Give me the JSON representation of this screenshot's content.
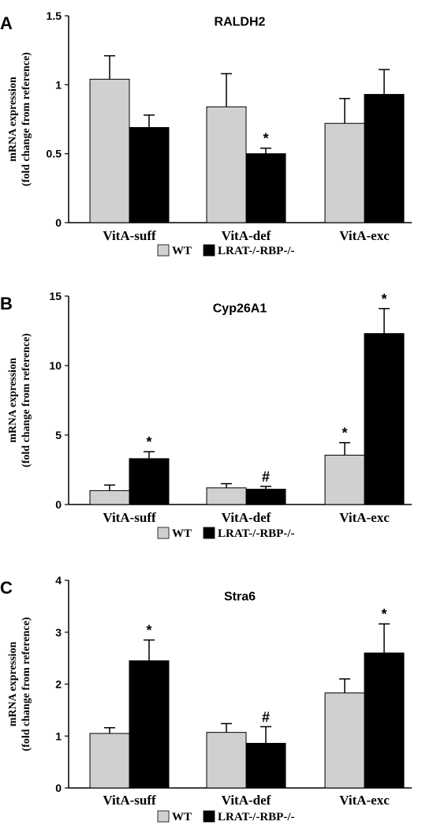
{
  "chart_data": [
    {
      "type": "bar",
      "panel_label": "A",
      "title": "RALDH2",
      "ylabel": [
        "mRNA expression",
        "(fold change from reference)"
      ],
      "ylim": [
        0,
        1.5
      ],
      "yticks": [
        0,
        0.5,
        1,
        1.5
      ],
      "ytick_labels": [
        "0",
        "0.5",
        "1",
        "1.5"
      ],
      "categories": [
        "VitA-suff",
        "VitA-def",
        "VitA-exc"
      ],
      "series": [
        {
          "name": "WT",
          "color": "#d0d0d0",
          "values": [
            1.04,
            0.84,
            0.72
          ],
          "errors": [
            0.17,
            0.24,
            0.18
          ],
          "annotations": [
            "",
            "",
            ""
          ]
        },
        {
          "name": "LRAT-/-RBP-/-",
          "color": "#000000",
          "values": [
            0.69,
            0.5,
            0.93
          ],
          "errors": [
            0.09,
            0.04,
            0.18
          ],
          "annotations": [
            "",
            "*",
            ""
          ]
        }
      ],
      "legend_position": "bottom-center",
      "grid": false
    },
    {
      "type": "bar",
      "panel_label": "B",
      "title": "Cyp26A1",
      "ylabel": [
        "mRNA expression",
        "(fold change from reference)"
      ],
      "ylim": [
        0,
        15
      ],
      "yticks": [
        0,
        5,
        10,
        15
      ],
      "ytick_labels": [
        "0",
        "5",
        "10",
        "15"
      ],
      "categories": [
        "VitA-suff",
        "VitA-def",
        "VitA-exc"
      ],
      "series": [
        {
          "name": "WT",
          "color": "#d0d0d0",
          "values": [
            1.0,
            1.2,
            3.55
          ],
          "errors": [
            0.4,
            0.3,
            0.9
          ],
          "annotations": [
            "",
            "",
            "*"
          ]
        },
        {
          "name": "LRAT-/-RBP-/-",
          "color": "#000000",
          "values": [
            3.3,
            1.1,
            12.3
          ],
          "errors": [
            0.5,
            0.2,
            1.8
          ],
          "annotations": [
            "*",
            "#",
            "*"
          ]
        }
      ],
      "legend_position": "bottom-center",
      "grid": false
    },
    {
      "type": "bar",
      "panel_label": "C",
      "title": "Stra6",
      "ylabel": [
        "mRNA expression",
        "(fold change from reference)"
      ],
      "ylim": [
        0,
        4
      ],
      "yticks": [
        0,
        1,
        2,
        3,
        4
      ],
      "ytick_labels": [
        "0",
        "1",
        "2",
        "3",
        "4"
      ],
      "categories": [
        "VitA-suff",
        "VitA-def",
        "VitA-exc"
      ],
      "series": [
        {
          "name": "WT",
          "color": "#d0d0d0",
          "values": [
            1.05,
            1.07,
            1.83
          ],
          "errors": [
            0.11,
            0.17,
            0.27
          ],
          "annotations": [
            "",
            "",
            ""
          ]
        },
        {
          "name": "LRAT-/-RBP-/-",
          "color": "#000000",
          "values": [
            2.45,
            0.86,
            2.6
          ],
          "errors": [
            0.4,
            0.32,
            0.56
          ],
          "annotations": [
            "*",
            "#",
            "*"
          ]
        }
      ],
      "legend_position": "bottom-center",
      "grid": false
    }
  ]
}
